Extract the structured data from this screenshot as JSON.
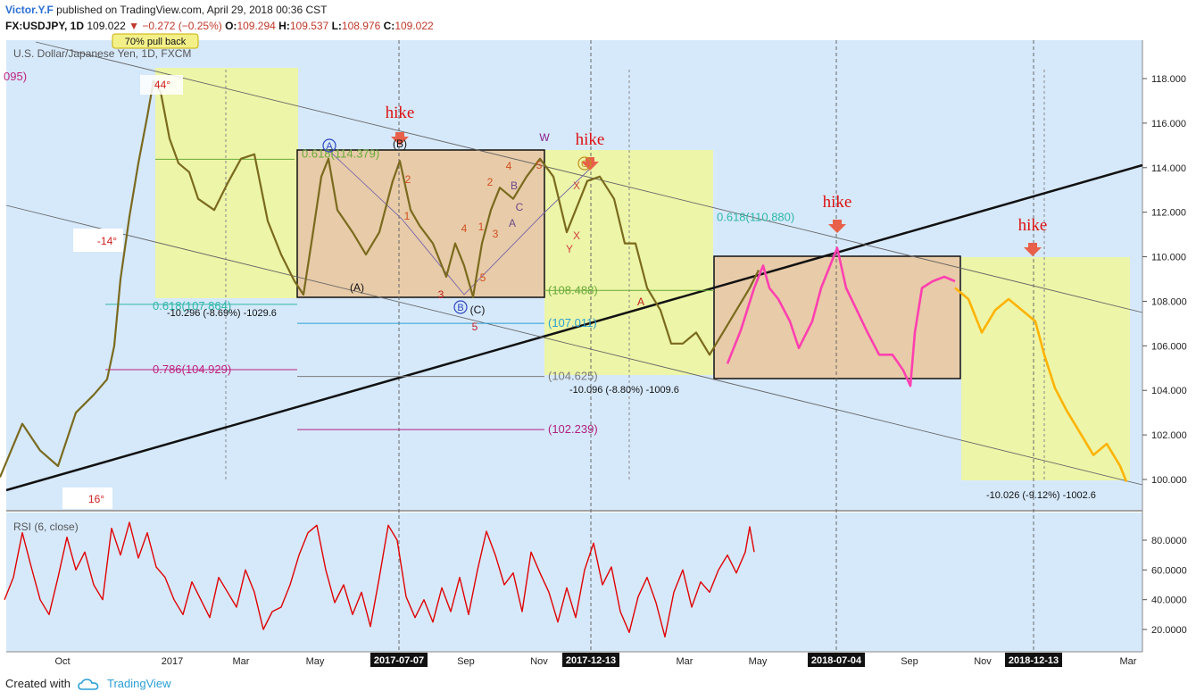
{
  "header": {
    "author": "Victor.Y.F",
    "published": "published on TradingView.com, April 29, 2018 00:36 CST",
    "symbol": "FX:USDJPY, 1D",
    "last": "109.022",
    "change": "−0.272 (−0.25%)",
    "o_label": "O:",
    "o": "109.294",
    "h_label": "H:",
    "h": "109.537",
    "l_label": "L:",
    "l": "108.976",
    "c_label": "C:",
    "c": "109.022"
  },
  "footer": {
    "created_with": "Created with",
    "brand": "TradingView"
  },
  "colors": {
    "background": "#d6e9fb",
    "yellow_zone": "#eef6a3",
    "orange_box": "#e9c9a3",
    "price": "#7a6a1e",
    "projection_pink": "#ff40b0",
    "projection_orange": "#ffb300",
    "rsi": "#e00000",
    "hike": "#dd1111",
    "hike_arrow": "#e8604a"
  },
  "chart_data": [
    {
      "type": "line",
      "title": "U.S. Dollar/Japanese Yen, 1D, FXCM",
      "ylim": [
        99.6,
        119
      ],
      "x_ticks": [
        "Oct",
        "2017",
        "Mar",
        "May",
        "Sep",
        "Nov",
        "Mar",
        "May",
        "Sep",
        "Nov",
        "Mar"
      ],
      "highlighted_dates": [
        "2017-07-07",
        "2017-12-13",
        "2018-07-04",
        "2018-12-13"
      ],
      "y_ticks": [
        "118.000",
        "116.000",
        "114.000",
        "112.000",
        "110.000",
        "108.000",
        "106.000",
        "104.000",
        "102.000",
        "100.000"
      ],
      "series": [
        {
          "role": "price",
          "points": [
            [
              0,
              100.1
            ],
            [
              25,
              102.5
            ],
            [
              45,
              101.3
            ],
            [
              65,
              100.6
            ],
            [
              85,
              103.0
            ],
            [
              105,
              103.8
            ],
            [
              120,
              104.5
            ],
            [
              128,
              106
            ],
            [
              135,
              109
            ],
            [
              145,
              111.8
            ],
            [
              155,
              114.2
            ],
            [
              165,
              116.3
            ],
            [
              172,
              117.9
            ],
            [
              180,
              117.4
            ],
            [
              190,
              115.3
            ],
            [
              200,
              114.2
            ],
            [
              212,
              113.8
            ],
            [
              222,
              112.6
            ],
            [
              240,
              112.1
            ],
            [
              255,
              113.3
            ],
            [
              270,
              114.4
            ],
            [
              285,
              114.6
            ],
            [
              300,
              111.6
            ],
            [
              315,
              110.1
            ],
            [
              330,
              108.9
            ],
            [
              340,
              108.3
            ],
            [
              350,
              110.9
            ],
            [
              360,
              113.6
            ],
            [
              368,
              114.4
            ],
            [
              378,
              112.1
            ],
            [
              395,
              111.1
            ],
            [
              410,
              110.1
            ],
            [
              425,
              111.1
            ],
            [
              440,
              113.4
            ],
            [
              448,
              114.3
            ],
            [
              460,
              112.1
            ],
            [
              470,
              111.4
            ],
            [
              485,
              110.6
            ],
            [
              500,
              109.1
            ],
            [
              510,
              110.6
            ],
            [
              520,
              109.6
            ],
            [
              530,
              108.2
            ],
            [
              540,
              110.6
            ],
            [
              550,
              112.1
            ],
            [
              560,
              113.1
            ],
            [
              575,
              112.6
            ],
            [
              590,
              113.6
            ],
            [
              605,
              114.4
            ],
            [
              620,
              113.6
            ],
            [
              635,
              111.1
            ],
            [
              645,
              112.1
            ],
            [
              658,
              113.4
            ],
            [
              672,
              113.6
            ],
            [
              688,
              112.6
            ],
            [
              700,
              110.6
            ],
            [
              712,
              110.6
            ],
            [
              725,
              108.6
            ],
            [
              740,
              107.6
            ],
            [
              752,
              106.1
            ],
            [
              765,
              106.1
            ],
            [
              780,
              106.6
            ],
            [
              795,
              105.6
            ],
            [
              810,
              106.6
            ],
            [
              825,
              107.6
            ],
            [
              840,
              108.6
            ],
            [
              850,
              109.4
            ]
          ]
        },
        {
          "role": "projection-pink",
          "points": [
            [
              815,
              105.2
            ],
            [
              830,
              106.7
            ],
            [
              845,
              108.6
            ],
            [
              855,
              109.6
            ],
            [
              862,
              108.6
            ],
            [
              872,
              108.1
            ],
            [
              885,
              107.1
            ],
            [
              895,
              105.9
            ],
            [
              910,
              107.1
            ],
            [
              920,
              108.6
            ],
            [
              930,
              109.6
            ],
            [
              938,
              110.4
            ],
            [
              948,
              108.6
            ],
            [
              960,
              107.6
            ],
            [
              972,
              106.6
            ],
            [
              985,
              105.6
            ],
            [
              1000,
              105.6
            ],
            [
              1012,
              104.9
            ],
            [
              1020,
              104.2
            ],
            [
              1025,
              106.6
            ],
            [
              1033,
              108.6
            ],
            [
              1045,
              108.9
            ],
            [
              1058,
              109.1
            ],
            [
              1070,
              108.9
            ]
          ]
        },
        {
          "role": "projection-orange",
          "points": [
            [
              1070,
              108.6
            ],
            [
              1085,
              108.1
            ],
            [
              1100,
              106.6
            ],
            [
              1115,
              107.6
            ],
            [
              1130,
              108.1
            ],
            [
              1145,
              107.6
            ],
            [
              1160,
              107.1
            ],
            [
              1170,
              105.6
            ],
            [
              1182,
              104.1
            ],
            [
              1195,
              103.1
            ],
            [
              1210,
              102.1
            ],
            [
              1225,
              101.1
            ],
            [
              1240,
              101.6
            ],
            [
              1255,
              100.6
            ],
            [
              1262,
              99.9
            ]
          ]
        }
      ],
      "annotations": {
        "pullback_callout": "70% pull back",
        "angles": [
          "44°",
          "-14°",
          "16°"
        ],
        "fib_levels": [
          {
            "label": "0.618(114.379)",
            "price": 114.379
          },
          {
            "label": "0.618(107.864)",
            "price": 107.864
          },
          {
            "label": "0.786(104.929)",
            "price": 104.929
          },
          {
            "label": "(108.488)",
            "price": 108.488
          },
          {
            "label": "(107.011)",
            "price": 107.011
          },
          {
            "label": "(104.625)",
            "price": 104.625
          },
          {
            "label": "(102.239)",
            "price": 102.239
          },
          {
            "label": "0.618(110.880)",
            "price": 110.88
          }
        ],
        "left_edge_label": "095)",
        "measurements": [
          "-10.296 (-8.69%) -1029.6",
          "-10.096 (-8.80%) -1009.6",
          "-10.026 (-9.12%) -1002.6"
        ],
        "hike_labels": [
          "hike",
          "hike",
          "hike",
          "hike"
        ],
        "wave_labels_black": [
          "(B)",
          "(A)",
          "(C)"
        ],
        "wave_labels_circled": [
          "A",
          "B",
          "C"
        ],
        "wave_labels_red": [
          "2",
          "1",
          "3",
          "4",
          "5",
          "1",
          "2",
          "3",
          "4",
          "5",
          "5",
          "A"
        ],
        "wave_labels_purple": [
          "W",
          "B",
          "A",
          "C",
          "X",
          "Y",
          "X"
        ]
      }
    },
    {
      "type": "line",
      "title": "RSI (6, close)",
      "ylim": [
        10,
        95
      ],
      "y_ticks": [
        "80.0000",
        "60.0000",
        "40.0000",
        "20.0000"
      ],
      "series": [
        {
          "role": "rsi",
          "points": [
            [
              5,
              40
            ],
            [
              15,
              55
            ],
            [
              25,
              85
            ],
            [
              35,
              62
            ],
            [
              45,
              40
            ],
            [
              55,
              30
            ],
            [
              65,
              55
            ],
            [
              75,
              82
            ],
            [
              85,
              60
            ],
            [
              95,
              72
            ],
            [
              105,
              50
            ],
            [
              115,
              40
            ],
            [
              125,
              88
            ],
            [
              135,
              70
            ],
            [
              145,
              92
            ],
            [
              155,
              68
            ],
            [
              165,
              85
            ],
            [
              175,
              62
            ],
            [
              185,
              55
            ],
            [
              195,
              40
            ],
            [
              205,
              30
            ],
            [
              215,
              52
            ],
            [
              225,
              40
            ],
            [
              235,
              28
            ],
            [
              245,
              55
            ],
            [
              255,
              45
            ],
            [
              265,
              35
            ],
            [
              275,
              60
            ],
            [
              285,
              45
            ],
            [
              295,
              20
            ],
            [
              305,
              32
            ],
            [
              315,
              35
            ],
            [
              325,
              50
            ],
            [
              335,
              70
            ],
            [
              345,
              85
            ],
            [
              355,
              90
            ],
            [
              365,
              60
            ],
            [
              375,
              38
            ],
            [
              385,
              50
            ],
            [
              395,
              30
            ],
            [
              405,
              45
            ],
            [
              415,
              22
            ],
            [
              425,
              55
            ],
            [
              435,
              90
            ],
            [
              445,
              80
            ],
            [
              455,
              42
            ],
            [
              465,
              28
            ],
            [
              475,
              40
            ],
            [
              485,
              25
            ],
            [
              495,
              48
            ],
            [
              505,
              32
            ],
            [
              515,
              55
            ],
            [
              525,
              30
            ],
            [
              535,
              60
            ],
            [
              545,
              86
            ],
            [
              555,
              70
            ],
            [
              565,
              50
            ],
            [
              575,
              58
            ],
            [
              585,
              32
            ],
            [
              595,
              72
            ],
            [
              605,
              58
            ],
            [
              615,
              45
            ],
            [
              625,
              25
            ],
            [
              635,
              48
            ],
            [
              645,
              28
            ],
            [
              655,
              60
            ],
            [
              665,
              78
            ],
            [
              675,
              50
            ],
            [
              685,
              62
            ],
            [
              695,
              32
            ],
            [
              705,
              18
            ],
            [
              715,
              42
            ],
            [
              725,
              55
            ],
            [
              735,
              38
            ],
            [
              745,
              15
            ],
            [
              755,
              45
            ],
            [
              765,
              60
            ],
            [
              775,
              35
            ],
            [
              785,
              52
            ],
            [
              795,
              45
            ],
            [
              805,
              60
            ],
            [
              815,
              70
            ],
            [
              825,
              58
            ],
            [
              835,
              72
            ],
            [
              840,
              89
            ],
            [
              845,
              72
            ]
          ]
        }
      ]
    }
  ]
}
